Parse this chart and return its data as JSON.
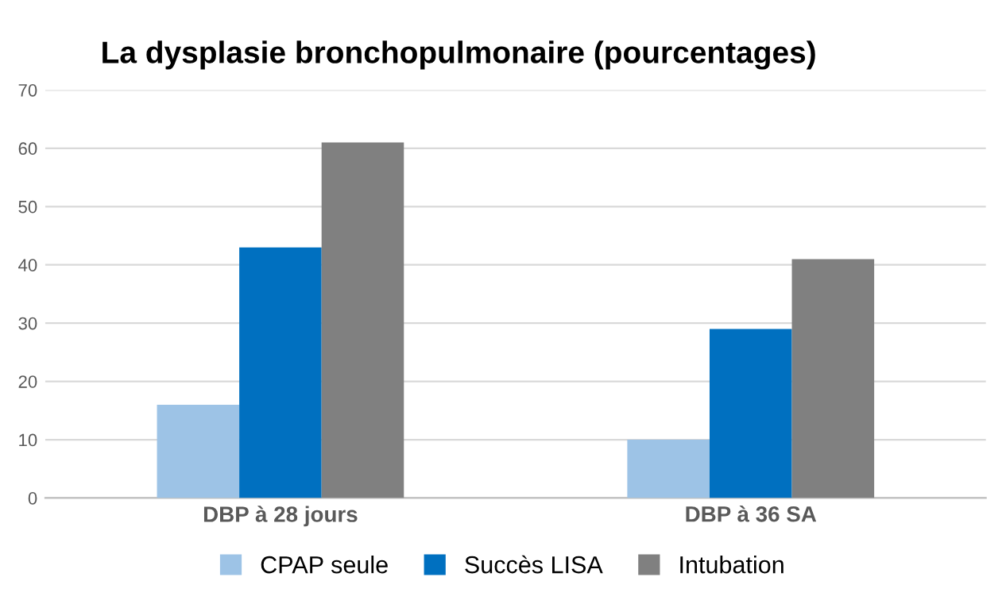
{
  "chart_data": {
    "type": "bar",
    "title": "La dysplasie bronchopulmonaire (pourcentages)",
    "categories": [
      "DBP à 28 jours",
      "DBP à 36 SA"
    ],
    "series": [
      {
        "name": "CPAP seule",
        "color": "#9dc3e6",
        "values": [
          16,
          10
        ]
      },
      {
        "name": "Succès LISA",
        "color": "#0070c0",
        "values": [
          43,
          29
        ]
      },
      {
        "name": "Intubation",
        "color": "#808080",
        "values": [
          61,
          41
        ]
      }
    ],
    "ylim": [
      0,
      70
    ],
    "yticks": [
      0,
      10,
      20,
      30,
      40,
      50,
      60,
      70
    ],
    "grid": "y",
    "legend": "bottom"
  }
}
